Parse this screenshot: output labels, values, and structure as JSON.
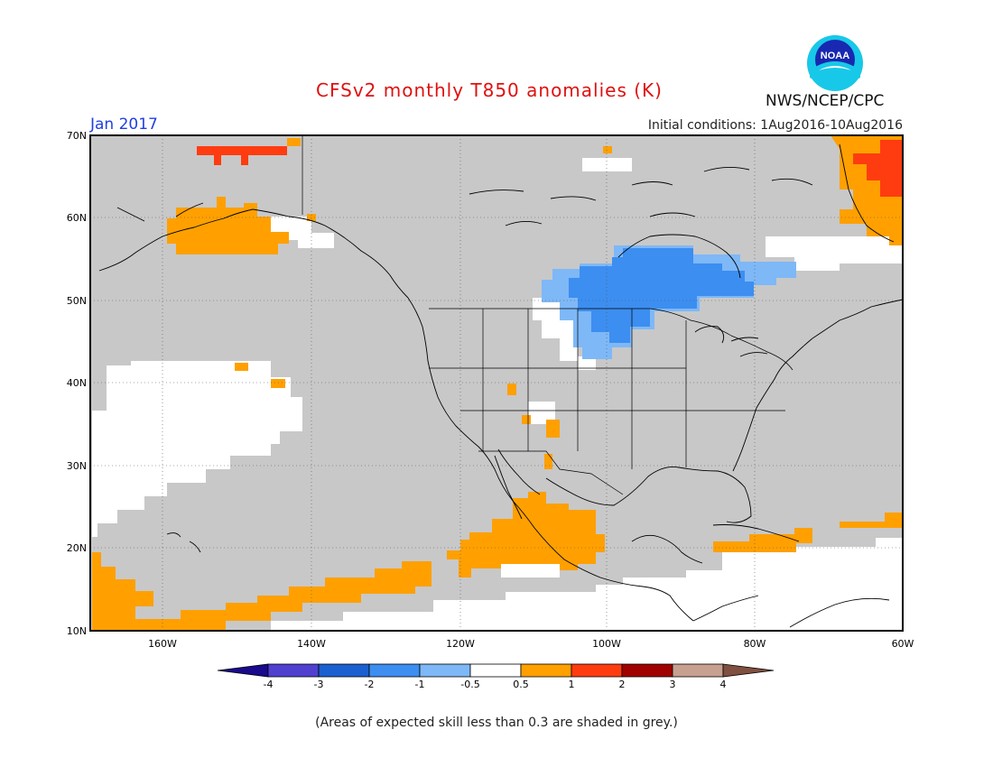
{
  "header": {
    "title": "CFSv2 monthly T850 anomalies (K)",
    "month": "Jan 2017",
    "initial_conditions": "Initial conditions: 1Aug2016-10Aug2016",
    "agency": "NWS/NCEP/CPC",
    "logo_text": "NOAA"
  },
  "map": {
    "lat_labels": [
      "70N",
      "60N",
      "50N",
      "40N",
      "30N",
      "20N",
      "10N"
    ],
    "lon_labels": [
      "160W",
      "140W",
      "120W",
      "100W",
      "80W",
      "60W"
    ],
    "colors": {
      "grey": "#c8c8c8",
      "white": "#ffffff",
      "orange": "#ffa000",
      "red_orange": "#ff3c10",
      "light_blue": "#7eb8f7",
      "mid_blue": "#3c8ef0"
    }
  },
  "legend": {
    "labels": [
      "-4",
      "-3",
      "-2",
      "-1",
      "-0.5",
      "0.5",
      "1",
      "2",
      "3",
      "4"
    ],
    "colors": [
      "#1a0a8c",
      "#5040d0",
      "#1a60d0",
      "#3c8ef0",
      "#7eb8f7",
      "#ffffff",
      "#ffa000",
      "#ff3c10",
      "#a00000",
      "#c8a090",
      "#805040"
    ]
  },
  "footer": {
    "skill_note": "(Areas of expected skill less than 0.3 are shaded in grey.)"
  }
}
